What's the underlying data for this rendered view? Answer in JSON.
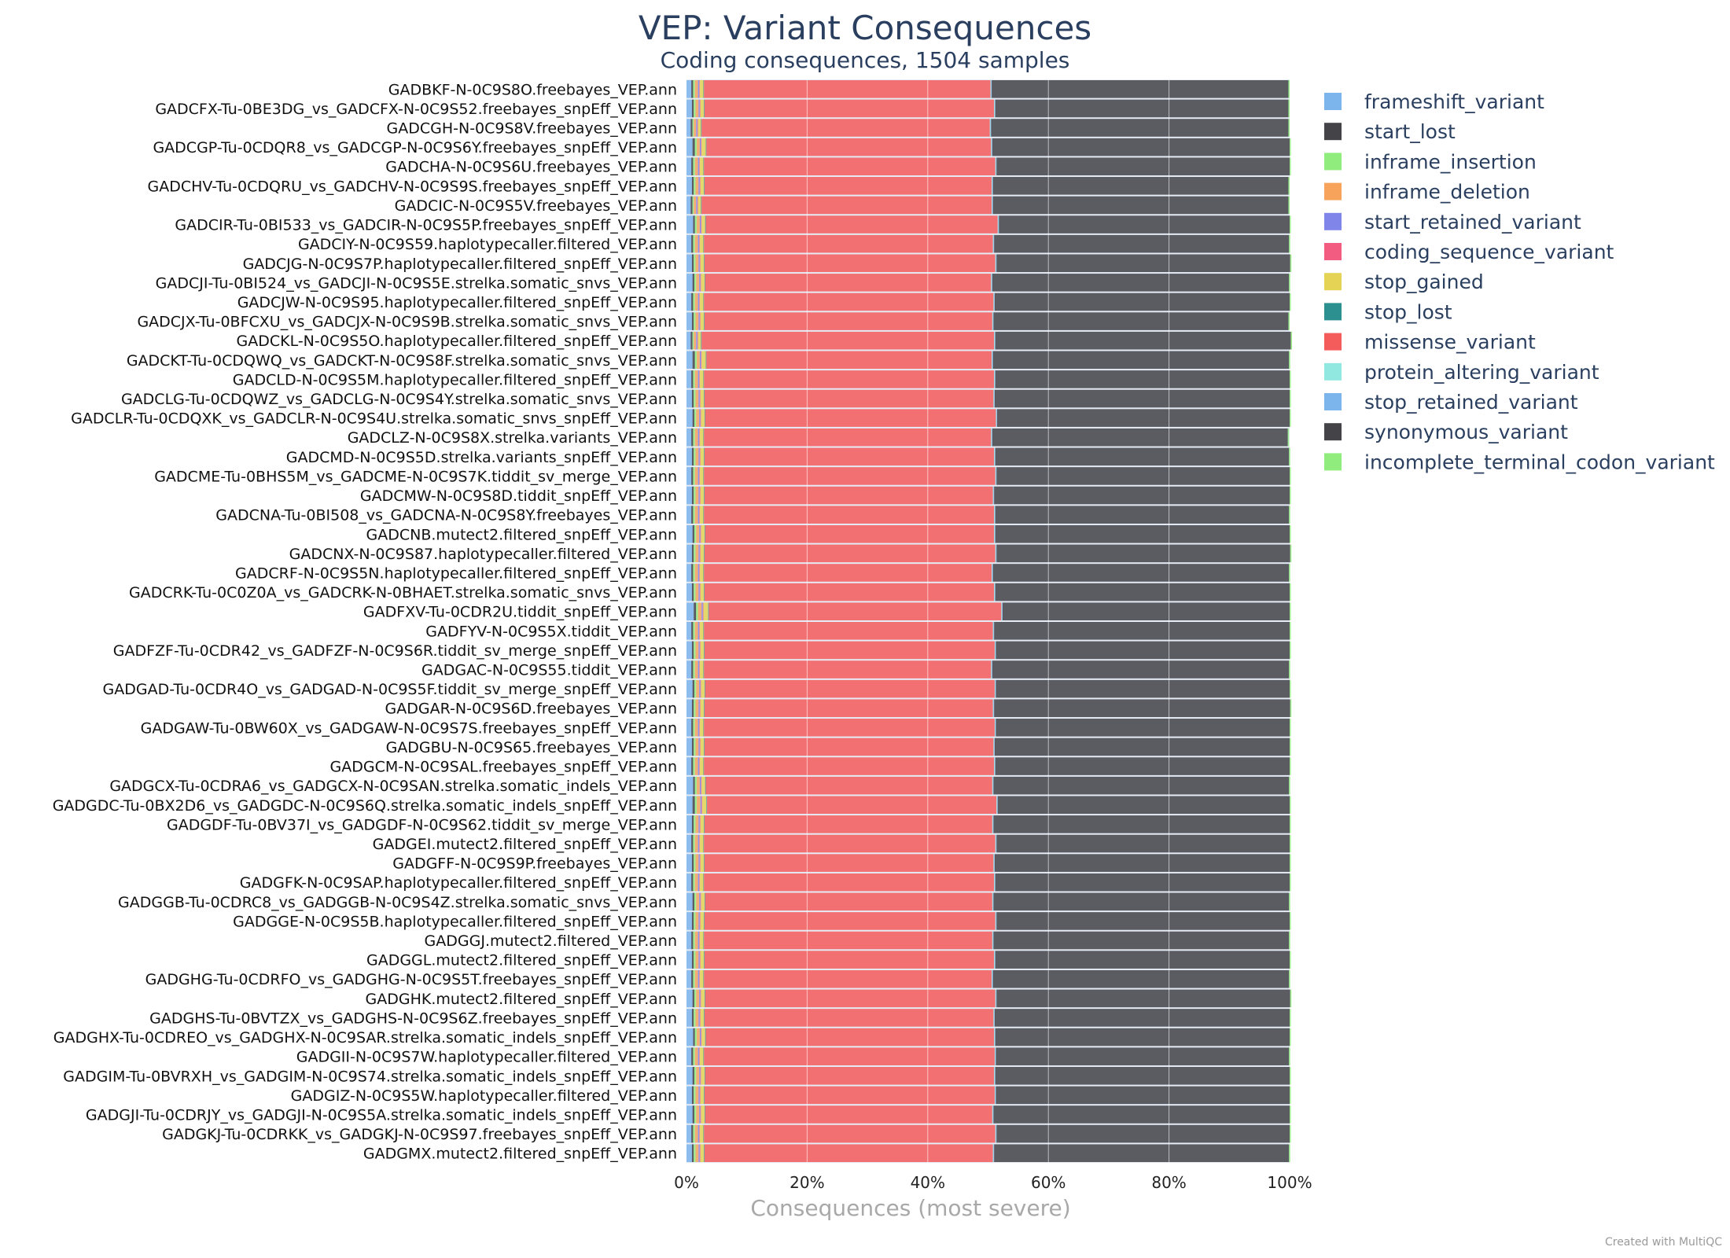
{
  "chart_data": {
    "type": "bar",
    "orientation": "horizontal",
    "stacked": "percent",
    "title": "VEP: Variant Consequences",
    "subtitle": "Coding consequences, 1504 samples",
    "xlabel": "Consequences (most severe)",
    "xlim": [
      0,
      100
    ],
    "xticks": [
      "0%",
      "20%",
      "40%",
      "60%",
      "80%",
      "100%"
    ],
    "legend_position": "right",
    "categories": [
      "GADBKF-N-0C9S8O.freebayes_VEP.ann",
      "GADCFX-Tu-0BE3DG_vs_GADCFX-N-0C9S52.freebayes_snpEff_VEP.ann",
      "GADCGH-N-0C9S8V.freebayes_VEP.ann",
      "GADCGP-Tu-0CDQR8_vs_GADCGP-N-0C9S6Y.freebayes_snpEff_VEP.ann",
      "GADCHA-N-0C9S6U.freebayes_VEP.ann",
      "GADCHV-Tu-0CDQRU_vs_GADCHV-N-0C9S9S.freebayes_snpEff_VEP.ann",
      "GADCIC-N-0C9S5V.freebayes_VEP.ann",
      "GADCIR-Tu-0BI533_vs_GADCIR-N-0C9S5P.freebayes_snpEff_VEP.ann",
      "GADCIY-N-0C9S59.haplotypecaller.filtered_VEP.ann",
      "GADCJG-N-0C9S7P.haplotypecaller.filtered_snpEff_VEP.ann",
      "GADCJI-Tu-0BI524_vs_GADCJI-N-0C9S5E.strelka.somatic_snvs_VEP.ann",
      "GADCJW-N-0C9S95.haplotypecaller.filtered_snpEff_VEP.ann",
      "GADCJX-Tu-0BFCXU_vs_GADCJX-N-0C9S9B.strelka.somatic_snvs_VEP.ann",
      "GADCKL-N-0C9S5O.haplotypecaller.filtered_snpEff_VEP.ann",
      "GADCKT-Tu-0CDQWQ_vs_GADCKT-N-0C9S8F.strelka.somatic_snvs_VEP.ann",
      "GADCLD-N-0C9S5M.haplotypecaller.filtered_snpEff_VEP.ann",
      "GADCLG-Tu-0CDQWZ_vs_GADCLG-N-0C9S4Y.strelka.somatic_snvs_VEP.ann",
      "GADCLR-Tu-0CDQXK_vs_GADCLR-N-0C9S4U.strelka.somatic_snvs_snpEff_VEP.ann",
      "GADCLZ-N-0C9S8X.strelka.variants_VEP.ann",
      "GADCMD-N-0C9S5D.strelka.variants_snpEff_VEP.ann",
      "GADCME-Tu-0BHS5M_vs_GADCME-N-0C9S7K.tiddit_sv_merge_VEP.ann",
      "GADCMW-N-0C9S8D.tiddit_snpEff_VEP.ann",
      "GADCNA-Tu-0BI508_vs_GADCNA-N-0C9S8Y.freebayes_VEP.ann",
      "GADCNB.mutect2.filtered_snpEff_VEP.ann",
      "GADCNX-N-0C9S87.haplotypecaller.filtered_VEP.ann",
      "GADCRF-N-0C9S5N.haplotypecaller.filtered_snpEff_VEP.ann",
      "GADCRK-Tu-0C0Z0A_vs_GADCRK-N-0BHAET.strelka.somatic_snvs_VEP.ann",
      "GADFXV-Tu-0CDR2U.tiddit_snpEff_VEP.ann",
      "GADFYV-N-0C9S5X.tiddit_VEP.ann",
      "GADFZF-Tu-0CDR42_vs_GADFZF-N-0C9S6R.tiddit_sv_merge_snpEff_VEP.ann",
      "GADGAC-N-0C9S55.tiddit_VEP.ann",
      "GADGAD-Tu-0CDR4O_vs_GADGAD-N-0C9S5F.tiddit_sv_merge_snpEff_VEP.ann",
      "GADGAR-N-0C9S6D.freebayes_VEP.ann",
      "GADGAW-Tu-0BW60X_vs_GADGAW-N-0C9S7S.freebayes_snpEff_VEP.ann",
      "GADGBU-N-0C9S65.freebayes_VEP.ann",
      "GADGCM-N-0C9SAL.freebayes_snpEff_VEP.ann",
      "GADGCX-Tu-0CDRA6_vs_GADGCX-N-0C9SAN.strelka.somatic_indels_VEP.ann",
      "GADGDC-Tu-0BX2D6_vs_GADGDC-N-0C9S6Q.strelka.somatic_indels_snpEff_VEP.ann",
      "GADGDF-Tu-0BV37I_vs_GADGDF-N-0C9S62.tiddit_sv_merge_VEP.ann",
      "GADGEI.mutect2.filtered_snpEff_VEP.ann",
      "GADGFF-N-0C9S9P.freebayes_VEP.ann",
      "GADGFK-N-0C9SAP.haplotypecaller.filtered_snpEff_VEP.ann",
      "GADGGB-Tu-0CDRC8_vs_GADGGB-N-0C9S4Z.strelka.somatic_snvs_VEP.ann",
      "GADGGE-N-0C9S5B.haplotypecaller.filtered_snpEff_VEP.ann",
      "GADGGJ.mutect2.filtered_VEP.ann",
      "GADGGL.mutect2.filtered_snpEff_VEP.ann",
      "GADGHG-Tu-0CDRFO_vs_GADGHG-N-0C9S5T.freebayes_snpEff_VEP.ann",
      "GADGHK.mutect2.filtered_snpEff_VEP.ann",
      "GADGHS-Tu-0BVTZX_vs_GADGHS-N-0C9S6Z.freebayes_snpEff_VEP.ann",
      "GADGHX-Tu-0CDREO_vs_GADGHX-N-0C9SAR.strelka.somatic_indels_snpEff_VEP.ann",
      "GADGII-N-0C9S7W.haplotypecaller.filtered_VEP.ann",
      "GADGIM-Tu-0BVRXH_vs_GADGIM-N-0C9S74.strelka.somatic_indels_snpEff_VEP.ann",
      "GADGIZ-N-0C9S5W.haplotypecaller.filtered_VEP.ann",
      "GADGJI-Tu-0CDRJY_vs_GADGJI-N-0C9S5A.strelka.somatic_indels_snpEff_VEP.ann",
      "GADGKJ-Tu-0CDRKK_vs_GADGKJ-N-0C9S97.freebayes_snpEff_VEP.ann",
      "GADGMX.mutect2.filtered_snpEff_VEP.ann"
    ],
    "series": [
      {
        "name": "frameshift_variant",
        "color": "#7cb5ec",
        "values": [
          0.8,
          0.9,
          0.7,
          1.0,
          0.8,
          0.9,
          0.7,
          1.1,
          0.8,
          0.9,
          1.0,
          0.8,
          0.9,
          0.7,
          1.0,
          0.8,
          0.9,
          1.0,
          0.8,
          0.9,
          0.8,
          0.9,
          0.8,
          1.0,
          0.9,
          0.8,
          0.9,
          1.2,
          0.8,
          0.9,
          0.8,
          1.0,
          0.9,
          0.8,
          0.9,
          0.8,
          1.1,
          1.0,
          0.9,
          0.8,
          0.9,
          0.8,
          1.0,
          0.9,
          0.8,
          0.9,
          0.8,
          1.0,
          0.9,
          1.1,
          0.8,
          1.0,
          0.9,
          1.0,
          0.8,
          0.9
        ]
      },
      {
        "name": "start_lost",
        "color": "#434348",
        "values": [
          0.3,
          0.3,
          0.3,
          0.4,
          0.3,
          0.3,
          0.3,
          0.3,
          0.3,
          0.3,
          0.3,
          0.3,
          0.3,
          0.3,
          0.4,
          0.3,
          0.3,
          0.3,
          0.3,
          0.3,
          0.3,
          0.3,
          0.3,
          0.3,
          0.3,
          0.3,
          0.3,
          0.4,
          0.3,
          0.3,
          0.3,
          0.3,
          0.3,
          0.3,
          0.3,
          0.3,
          0.3,
          0.4,
          0.3,
          0.3,
          0.3,
          0.3,
          0.3,
          0.3,
          0.3,
          0.3,
          0.3,
          0.3,
          0.3,
          0.3,
          0.3,
          0.3,
          0.3,
          0.3,
          0.3,
          0.3
        ]
      },
      {
        "name": "inframe_insertion",
        "color": "#90ed7d",
        "values": [
          0.3,
          0.3,
          0.2,
          0.3,
          0.3,
          0.3,
          0.2,
          0.3,
          0.3,
          0.3,
          0.3,
          0.3,
          0.3,
          0.2,
          0.3,
          0.3,
          0.3,
          0.3,
          0.3,
          0.3,
          0.3,
          0.3,
          0.3,
          0.3,
          0.3,
          0.3,
          0.3,
          0.3,
          0.3,
          0.3,
          0.3,
          0.3,
          0.3,
          0.3,
          0.3,
          0.3,
          0.3,
          0.3,
          0.3,
          0.3,
          0.3,
          0.3,
          0.3,
          0.3,
          0.3,
          0.3,
          0.3,
          0.3,
          0.3,
          0.3,
          0.3,
          0.3,
          0.3,
          0.3,
          0.3,
          0.3
        ]
      },
      {
        "name": "inframe_deletion",
        "color": "#f7a35c",
        "values": [
          0.5,
          0.5,
          0.4,
          0.5,
          0.5,
          0.5,
          0.4,
          0.5,
          0.5,
          0.5,
          0.5,
          0.5,
          0.5,
          0.4,
          0.5,
          0.5,
          0.5,
          0.5,
          0.5,
          0.5,
          0.5,
          0.5,
          0.5,
          0.5,
          0.5,
          0.5,
          0.5,
          0.6,
          0.5,
          0.5,
          0.5,
          0.5,
          0.5,
          0.5,
          0.5,
          0.5,
          0.5,
          0.6,
          0.5,
          0.5,
          0.5,
          0.5,
          0.5,
          0.5,
          0.5,
          0.5,
          0.5,
          0.5,
          0.5,
          0.5,
          0.5,
          0.5,
          0.5,
          0.5,
          0.5,
          0.5
        ]
      },
      {
        "name": "start_retained_variant",
        "color": "#8085e9",
        "values": [
          0.2,
          0.2,
          0.2,
          0.2,
          0.2,
          0.2,
          0.2,
          0.2,
          0.2,
          0.2,
          0.2,
          0.2,
          0.2,
          0.2,
          0.2,
          0.2,
          0.2,
          0.2,
          0.2,
          0.2,
          0.2,
          0.2,
          0.2,
          0.2,
          0.2,
          0.2,
          0.2,
          0.2,
          0.2,
          0.2,
          0.2,
          0.2,
          0.2,
          0.2,
          0.2,
          0.2,
          0.2,
          0.2,
          0.2,
          0.2,
          0.2,
          0.2,
          0.2,
          0.2,
          0.2,
          0.2,
          0.2,
          0.2,
          0.2,
          0.2,
          0.2,
          0.2,
          0.2,
          0.2,
          0.2,
          0.2
        ]
      },
      {
        "name": "coding_sequence_variant",
        "color": "#f15c80",
        "values": [
          0.1,
          0.1,
          0.1,
          0.1,
          0.1,
          0.1,
          0.1,
          0.1,
          0.1,
          0.1,
          0.1,
          0.1,
          0.1,
          0.1,
          0.1,
          0.1,
          0.1,
          0.1,
          0.1,
          0.1,
          0.1,
          0.1,
          0.1,
          0.1,
          0.1,
          0.1,
          0.1,
          0.1,
          0.1,
          0.1,
          0.1,
          0.1,
          0.1,
          0.1,
          0.1,
          0.1,
          0.1,
          0.1,
          0.1,
          0.1,
          0.1,
          0.1,
          0.1,
          0.1,
          0.1,
          0.1,
          0.1,
          0.1,
          0.1,
          0.1,
          0.1,
          0.1,
          0.1,
          0.1,
          0.1,
          0.1
        ]
      },
      {
        "name": "stop_gained",
        "color": "#e4d354",
        "values": [
          0.6,
          0.6,
          0.5,
          0.7,
          0.6,
          0.6,
          0.5,
          0.6,
          0.6,
          0.6,
          0.6,
          0.6,
          0.6,
          0.5,
          0.7,
          0.6,
          0.6,
          0.6,
          0.6,
          0.6,
          0.6,
          0.6,
          0.6,
          0.6,
          0.6,
          0.6,
          0.6,
          0.8,
          0.6,
          0.6,
          0.6,
          0.6,
          0.6,
          0.6,
          0.6,
          0.6,
          0.6,
          0.7,
          0.6,
          0.6,
          0.6,
          0.6,
          0.6,
          0.6,
          0.6,
          0.6,
          0.6,
          0.6,
          0.6,
          0.6,
          0.6,
          0.6,
          0.6,
          0.6,
          0.6,
          0.6
        ]
      },
      {
        "name": "stop_lost",
        "color": "#2b908f",
        "values": [
          0.1,
          0.1,
          0.1,
          0.1,
          0.1,
          0.1,
          0.1,
          0.1,
          0.1,
          0.1,
          0.1,
          0.1,
          0.1,
          0.1,
          0.1,
          0.1,
          0.1,
          0.1,
          0.1,
          0.1,
          0.1,
          0.1,
          0.1,
          0.1,
          0.1,
          0.1,
          0.1,
          0.1,
          0.1,
          0.1,
          0.1,
          0.1,
          0.1,
          0.1,
          0.1,
          0.1,
          0.1,
          0.1,
          0.1,
          0.1,
          0.1,
          0.1,
          0.1,
          0.1,
          0.1,
          0.1,
          0.1,
          0.1,
          0.1,
          0.1,
          0.1,
          0.1,
          0.1,
          0.1,
          0.1,
          0.1
        ]
      },
      {
        "name": "missense_variant",
        "color": "#f45b5b",
        "values": [
          47.5,
          48.0,
          47.8,
          47.2,
          48.3,
          47.6,
          48.1,
          48.4,
          47.9,
          48.2,
          47.4,
          48.0,
          47.7,
          48.5,
          47.3,
          48.1,
          47.9,
          48.2,
          47.6,
          48.0,
          48.3,
          47.8,
          48.1,
          47.9,
          48.2,
          47.7,
          48.0,
          48.5,
          47.9,
          48.1,
          47.6,
          48.0,
          47.8,
          48.2,
          47.9,
          48.1,
          47.5,
          48.0,
          47.7,
          48.3,
          47.9,
          48.1,
          47.6,
          48.2,
          47.8,
          48.0,
          47.7,
          48.1,
          47.9,
          47.8,
          48.2,
          47.9,
          48.1,
          47.6,
          48.3,
          47.8
        ]
      },
      {
        "name": "protein_altering_variant",
        "color": "#91e8e1",
        "values": [
          0.1,
          0.1,
          0.1,
          0.1,
          0.1,
          0.1,
          0.1,
          0.1,
          0.1,
          0.1,
          0.1,
          0.1,
          0.1,
          0.1,
          0.1,
          0.1,
          0.1,
          0.1,
          0.1,
          0.1,
          0.1,
          0.1,
          0.1,
          0.1,
          0.1,
          0.1,
          0.1,
          0.1,
          0.1,
          0.1,
          0.1,
          0.1,
          0.1,
          0.1,
          0.1,
          0.1,
          0.1,
          0.1,
          0.1,
          0.1,
          0.1,
          0.1,
          0.1,
          0.1,
          0.1,
          0.1,
          0.1,
          0.1,
          0.1,
          0.1,
          0.1,
          0.1,
          0.1,
          0.1,
          0.1,
          0.1
        ]
      },
      {
        "name": "stop_retained_variant",
        "color": "#7cb5ec",
        "values": [
          0.1,
          0.1,
          0.1,
          0.1,
          0.1,
          0.1,
          0.1,
          0.1,
          0.1,
          0.1,
          0.1,
          0.1,
          0.1,
          0.1,
          0.1,
          0.1,
          0.1,
          0.1,
          0.1,
          0.1,
          0.1,
          0.1,
          0.1,
          0.1,
          0.1,
          0.1,
          0.1,
          0.1,
          0.1,
          0.1,
          0.1,
          0.1,
          0.1,
          0.1,
          0.1,
          0.1,
          0.1,
          0.1,
          0.1,
          0.1,
          0.1,
          0.1,
          0.1,
          0.1,
          0.1,
          0.1,
          0.1,
          0.1,
          0.1,
          0.1,
          0.1,
          0.1,
          0.1,
          0.1,
          0.1,
          0.1
        ]
      },
      {
        "name": "synonymous_variant",
        "color": "#434348",
        "values": [
          49.2,
          48.6,
          49.3,
          49.3,
          48.6,
          49.0,
          49.0,
          48.2,
          48.9,
          48.7,
          49.2,
          48.9,
          48.9,
          49.0,
          49.1,
          48.8,
          48.9,
          48.5,
          49.0,
          48.7,
          48.6,
          49.0,
          48.7,
          48.8,
          48.7,
          49.1,
          48.8,
          47.6,
          49.0,
          48.7,
          49.2,
          48.7,
          49.1,
          48.7,
          48.9,
          48.8,
          49.0,
          48.4,
          49.1,
          48.6,
          48.9,
          48.8,
          49.0,
          48.6,
          49.0,
          48.8,
          49.1,
          48.7,
          48.9,
          48.8,
          48.6,
          48.8,
          48.7,
          49.1,
          48.6,
          48.9
        ]
      },
      {
        "name": "incomplete_terminal_codon_variant",
        "color": "#90ed7d",
        "values": [
          0.2,
          0.2,
          0.2,
          0.2,
          0.2,
          0.2,
          0.2,
          0.2,
          0.2,
          0.2,
          0.2,
          0.2,
          0.2,
          0.2,
          0.2,
          0.2,
          0.2,
          0.2,
          0.2,
          0.2,
          0.2,
          0.2,
          0.2,
          0.2,
          0.2,
          0.2,
          0.2,
          0.2,
          0.2,
          0.2,
          0.2,
          0.2,
          0.2,
          0.2,
          0.2,
          0.2,
          0.2,
          0.2,
          0.2,
          0.2,
          0.2,
          0.2,
          0.2,
          0.2,
          0.2,
          0.2,
          0.2,
          0.2,
          0.2,
          0.2,
          0.2,
          0.2,
          0.2,
          0.2,
          0.2,
          0.2
        ]
      }
    ]
  },
  "footer": {
    "credit": "Created with MultiQC"
  }
}
